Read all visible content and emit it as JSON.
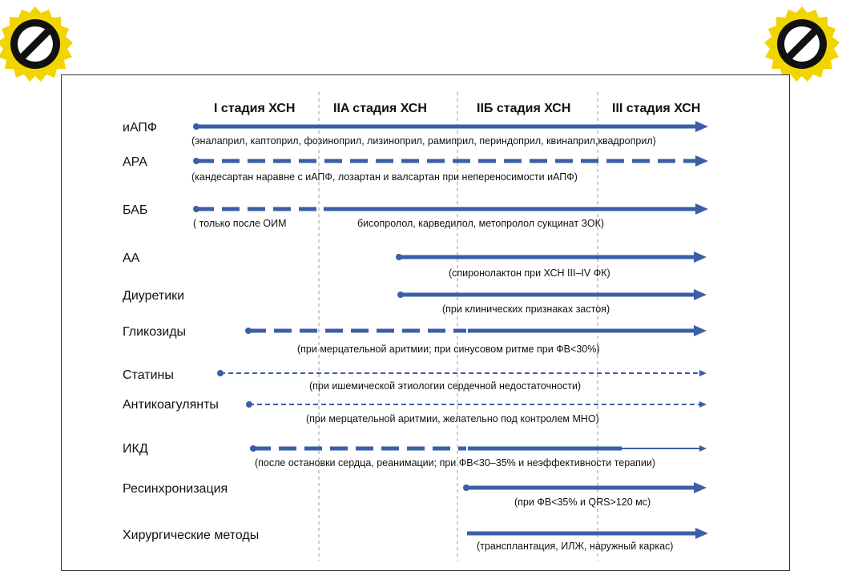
{
  "stages": [
    {
      "label": "I стадия ХСН"
    },
    {
      "label": "IIA стадия ХСН"
    },
    {
      "label": "IIБ стадия ХСН"
    },
    {
      "label": "III стадия ХСН"
    }
  ],
  "rows": [
    {
      "drug": "иАПФ",
      "note": "(эналаприл, каптоприл, фозиноприл, лизиноприл, рамиприл, периндоприл, квинаприл,квадроприл)"
    },
    {
      "drug": "АРА",
      "note": "(кандесартан наравне с иАПФ, лозартан и валсартан при непереносимости иАПФ)"
    },
    {
      "drug": "БАБ",
      "note": "( только после ОИМ",
      "note2": "бисопролол, карведилол, метопролол сукцинат ЗОК)"
    },
    {
      "drug": "АА",
      "note": "(спиронолактон при ХСН III–IV ФК)"
    },
    {
      "drug": "Диуретики",
      "note": "(при клинических признаках застоя)"
    },
    {
      "drug": "Гликозиды",
      "note": "(при мерцательной аритмии;  при синусовом ритме при ФВ<30%)"
    },
    {
      "drug": "Статины",
      "note": "(при ишемической этиологии сердечной недостаточности)"
    },
    {
      "drug": "Антикоагулянты",
      "note": "(при мерцательной аритмии, желательно под контролем МНО)"
    },
    {
      "drug": "ИКД",
      "note": "(после остановки сердца, реанимации; при ФВ<30–35% и неэффективности терапии)"
    },
    {
      "drug": "Ресинхронизация",
      "note": "(при ФВ<35% и QRS>120 мс)"
    },
    {
      "drug": "Хирургические методы",
      "note": "(трансплантация, ИЛЖ, наружный каркас)"
    }
  ],
  "colors": {
    "line": "#3a5fa6",
    "badge_outer": "#f2d400",
    "badge_inner": "#ffffff",
    "badge_symbol": "#111111"
  },
  "icons": {
    "badge": "prohibited-sign-icon"
  }
}
